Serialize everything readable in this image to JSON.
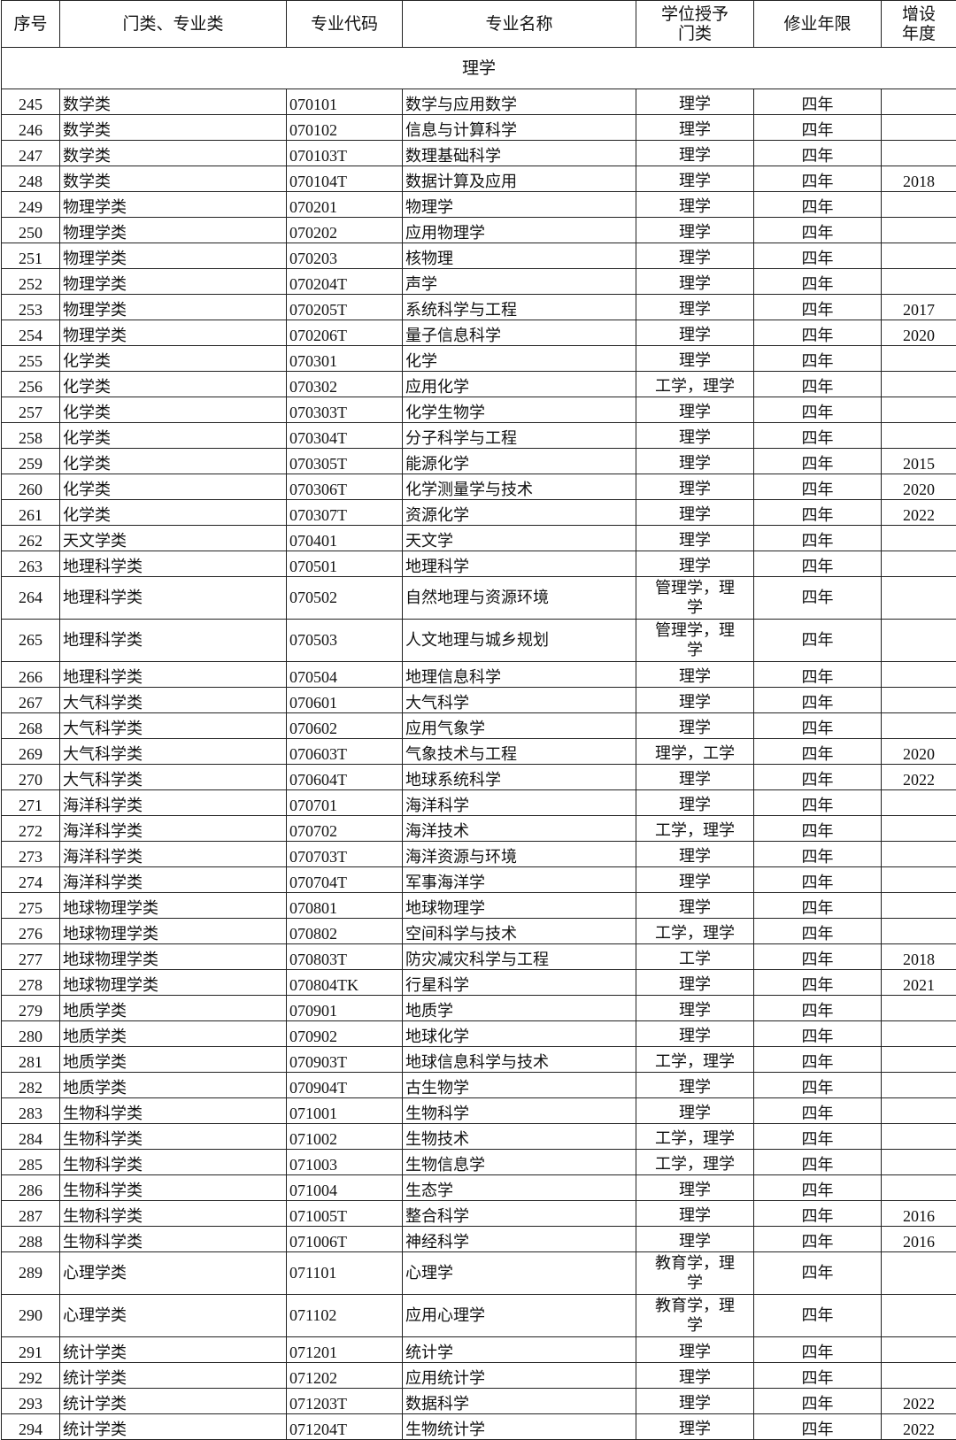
{
  "headers": [
    "序号",
    "门类、专业类",
    "专业代码",
    "专业名称",
    "学位授予门类",
    "修业年限",
    "增设年度"
  ],
  "section": "理学",
  "rows": [
    [
      "245",
      "数学类",
      "070101",
      "数学与应用数学",
      "理学",
      "四年",
      ""
    ],
    [
      "246",
      "数学类",
      "070102",
      "信息与计算科学",
      "理学",
      "四年",
      ""
    ],
    [
      "247",
      "数学类",
      "070103T",
      "数理基础科学",
      "理学",
      "四年",
      ""
    ],
    [
      "248",
      "数学类",
      "070104T",
      "数据计算及应用",
      "理学",
      "四年",
      "2018"
    ],
    [
      "249",
      "物理学类",
      "070201",
      "物理学",
      "理学",
      "四年",
      ""
    ],
    [
      "250",
      "物理学类",
      "070202",
      "应用物理学",
      "理学",
      "四年",
      ""
    ],
    [
      "251",
      "物理学类",
      "070203",
      "核物理",
      "理学",
      "四年",
      ""
    ],
    [
      "252",
      "物理学类",
      "070204T",
      "声学",
      "理学",
      "四年",
      ""
    ],
    [
      "253",
      "物理学类",
      "070205T",
      "系统科学与工程",
      "理学",
      "四年",
      "2017"
    ],
    [
      "254",
      "物理学类",
      "070206T",
      "量子信息科学",
      "理学",
      "四年",
      "2020"
    ],
    [
      "255",
      "化学类",
      "070301",
      "化学",
      "理学",
      "四年",
      ""
    ],
    [
      "256",
      "化学类",
      "070302",
      "应用化学",
      "工学，理学",
      "四年",
      ""
    ],
    [
      "257",
      "化学类",
      "070303T",
      "化学生物学",
      "理学",
      "四年",
      ""
    ],
    [
      "258",
      "化学类",
      "070304T",
      "分子科学与工程",
      "理学",
      "四年",
      ""
    ],
    [
      "259",
      "化学类",
      "070305T",
      "能源化学",
      "理学",
      "四年",
      "2015"
    ],
    [
      "260",
      "化学类",
      "070306T",
      "化学测量学与技术",
      "理学",
      "四年",
      "2020"
    ],
    [
      "261",
      "化学类",
      "070307T",
      "资源化学",
      "理学",
      "四年",
      "2022"
    ],
    [
      "262",
      "天文学类",
      "070401",
      "天文学",
      "理学",
      "四年",
      ""
    ],
    [
      "263",
      "地理科学类",
      "070501",
      "地理科学",
      "理学",
      "四年",
      ""
    ],
    [
      "264",
      "地理科学类",
      "070502",
      "自然地理与资源环境",
      "管理学，理学",
      "四年",
      ""
    ],
    [
      "265",
      "地理科学类",
      "070503",
      "人文地理与城乡规划",
      "管理学，理学",
      "四年",
      ""
    ],
    [
      "266",
      "地理科学类",
      "070504",
      "地理信息科学",
      "理学",
      "四年",
      ""
    ],
    [
      "267",
      "大气科学类",
      "070601",
      "大气科学",
      "理学",
      "四年",
      ""
    ],
    [
      "268",
      "大气科学类",
      "070602",
      "应用气象学",
      "理学",
      "四年",
      ""
    ],
    [
      "269",
      "大气科学类",
      "070603T",
      "气象技术与工程",
      "理学，工学",
      "四年",
      "2020"
    ],
    [
      "270",
      "大气科学类",
      "070604T",
      "地球系统科学",
      "理学",
      "四年",
      "2022"
    ],
    [
      "271",
      "海洋科学类",
      "070701",
      "海洋科学",
      "理学",
      "四年",
      ""
    ],
    [
      "272",
      "海洋科学类",
      "070702",
      "海洋技术",
      "工学，理学",
      "四年",
      ""
    ],
    [
      "273",
      "海洋科学类",
      "070703T",
      "海洋资源与环境",
      "理学",
      "四年",
      ""
    ],
    [
      "274",
      "海洋科学类",
      "070704T",
      "军事海洋学",
      "理学",
      "四年",
      ""
    ],
    [
      "275",
      "地球物理学类",
      "070801",
      "地球物理学",
      "理学",
      "四年",
      ""
    ],
    [
      "276",
      "地球物理学类",
      "070802",
      "空间科学与技术",
      "工学，理学",
      "四年",
      ""
    ],
    [
      "277",
      "地球物理学类",
      "070803T",
      "防灾减灾科学与工程",
      "工学",
      "四年",
      "2018"
    ],
    [
      "278",
      "地球物理学类",
      "070804TK",
      "行星科学",
      "理学",
      "四年",
      "2021"
    ],
    [
      "279",
      "地质学类",
      "070901",
      "地质学",
      "理学",
      "四年",
      ""
    ],
    [
      "280",
      "地质学类",
      "070902",
      "地球化学",
      "理学",
      "四年",
      ""
    ],
    [
      "281",
      "地质学类",
      "070903T",
      "地球信息科学与技术",
      "工学，理学",
      "四年",
      ""
    ],
    [
      "282",
      "地质学类",
      "070904T",
      "古生物学",
      "理学",
      "四年",
      ""
    ],
    [
      "283",
      "生物科学类",
      "071001",
      "生物科学",
      "理学",
      "四年",
      ""
    ],
    [
      "284",
      "生物科学类",
      "071002",
      "生物技术",
      "工学，理学",
      "四年",
      ""
    ],
    [
      "285",
      "生物科学类",
      "071003",
      "生物信息学",
      "工学，理学",
      "四年",
      ""
    ],
    [
      "286",
      "生物科学类",
      "071004",
      "生态学",
      "理学",
      "四年",
      ""
    ],
    [
      "287",
      "生物科学类",
      "071005T",
      "整合科学",
      "理学",
      "四年",
      "2016"
    ],
    [
      "288",
      "生物科学类",
      "071006T",
      "神经科学",
      "理学",
      "四年",
      "2016"
    ],
    [
      "289",
      "心理学类",
      "071101",
      "心理学",
      "教育学，理学",
      "四年",
      ""
    ],
    [
      "290",
      "心理学类",
      "071102",
      "应用心理学",
      "教育学，理学",
      "四年",
      ""
    ],
    [
      "291",
      "统计学类",
      "071201",
      "统计学",
      "理学",
      "四年",
      ""
    ],
    [
      "292",
      "统计学类",
      "071202",
      "应用统计学",
      "理学",
      "四年",
      ""
    ],
    [
      "293",
      "统计学类",
      "071203T",
      "数据科学",
      "理学",
      "四年",
      "2022"
    ],
    [
      "294",
      "统计学类",
      "071204T",
      "生物统计学",
      "理学",
      "四年",
      "2022"
    ]
  ]
}
